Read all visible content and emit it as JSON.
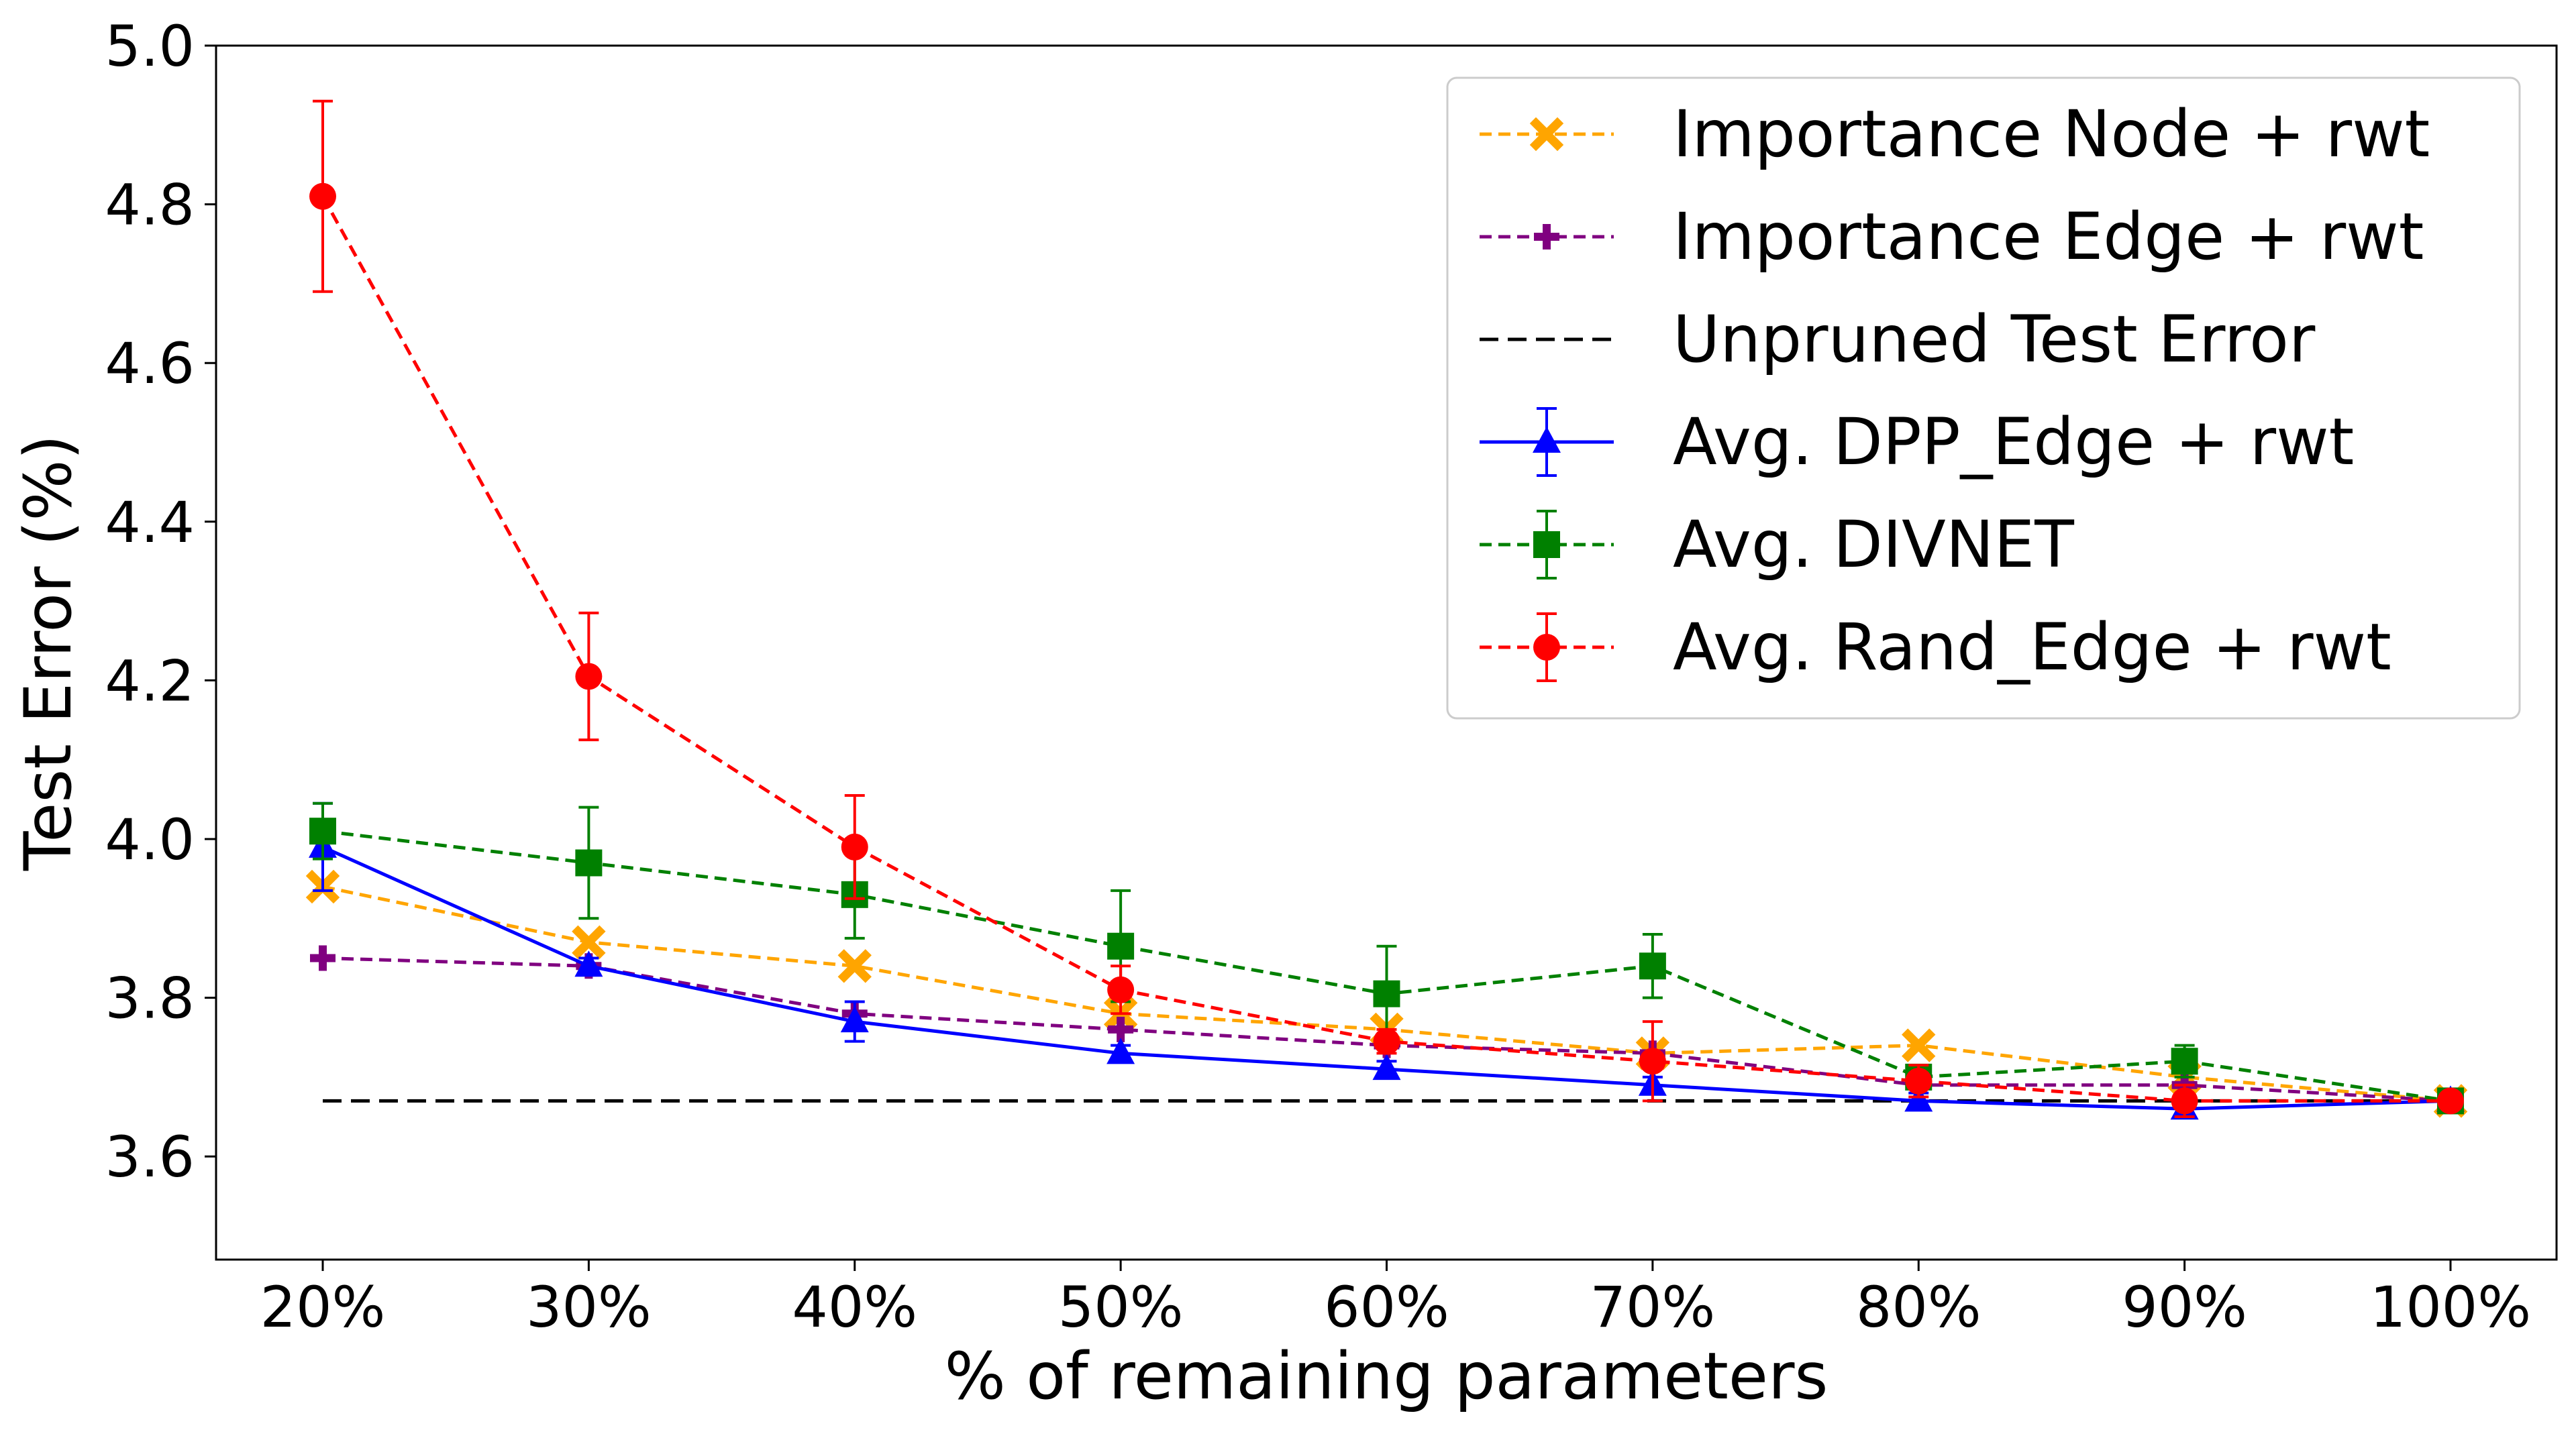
{
  "chart_data": {
    "type": "line",
    "title": "",
    "xlabel": "% of remaining parameters",
    "ylabel": "Test Error (%)",
    "categories": [
      "20%",
      "30%",
      "40%",
      "50%",
      "60%",
      "70%",
      "80%",
      "90%",
      "100%"
    ],
    "ylim": [
      3.47,
      5.0
    ],
    "yticks": [
      "3.6",
      "3.8",
      "4.0",
      "4.2",
      "4.4",
      "4.6",
      "4.8",
      "5.0"
    ],
    "grid": false,
    "legend_position": "top-right",
    "baseline": {
      "name": "Unpruned Test Error",
      "value": 3.67,
      "color": "#000000",
      "dash": true
    },
    "series": [
      {
        "name": "Importance Node + rwt",
        "color": "#ffa500",
        "marker": "x-filled",
        "dash": true,
        "values": [
          3.94,
          3.87,
          3.84,
          3.78,
          3.76,
          3.73,
          3.74,
          3.7,
          3.67
        ]
      },
      {
        "name": "Importance Edge + rwt",
        "color": "#800080",
        "marker": "plus-filled",
        "dash": true,
        "values": [
          3.85,
          3.84,
          3.78,
          3.76,
          3.74,
          3.73,
          3.69,
          3.69,
          3.67
        ]
      },
      {
        "name": "Avg. DPP_Edge + rwt",
        "color": "#0000ff",
        "marker": "triangle",
        "dash": false,
        "values": [
          3.99,
          3.84,
          3.77,
          3.73,
          3.71,
          3.69,
          3.67,
          3.66,
          3.67
        ],
        "errors": [
          0.055,
          0.01,
          0.025,
          0.01,
          0.01,
          0.01,
          0.01,
          0.01,
          0.005
        ]
      },
      {
        "name": "Avg. DIVNET",
        "color": "#008000",
        "marker": "square",
        "dash": true,
        "values": [
          4.01,
          3.97,
          3.93,
          3.865,
          3.805,
          3.84,
          3.7,
          3.72,
          3.67
        ],
        "errors": [
          0.035,
          0.07,
          0.055,
          0.07,
          0.06,
          0.04,
          0.015,
          0.02,
          0.005
        ]
      },
      {
        "name": "Avg. Rand_Edge + rwt",
        "color": "#ff0000",
        "marker": "circle",
        "dash": true,
        "values": [
          4.81,
          4.205,
          3.99,
          3.81,
          3.745,
          3.72,
          3.695,
          3.67,
          3.67
        ],
        "errors": [
          0.12,
          0.08,
          0.065,
          0.03,
          0.015,
          0.05,
          0.02,
          0.02,
          0.005
        ]
      }
    ],
    "legend_order": [
      "Importance Node + rwt",
      "Importance Edge + rwt",
      "Unpruned Test Error",
      "Avg. DPP_Edge + rwt",
      "Avg. DIVNET",
      "Avg. Rand_Edge + rwt"
    ]
  }
}
